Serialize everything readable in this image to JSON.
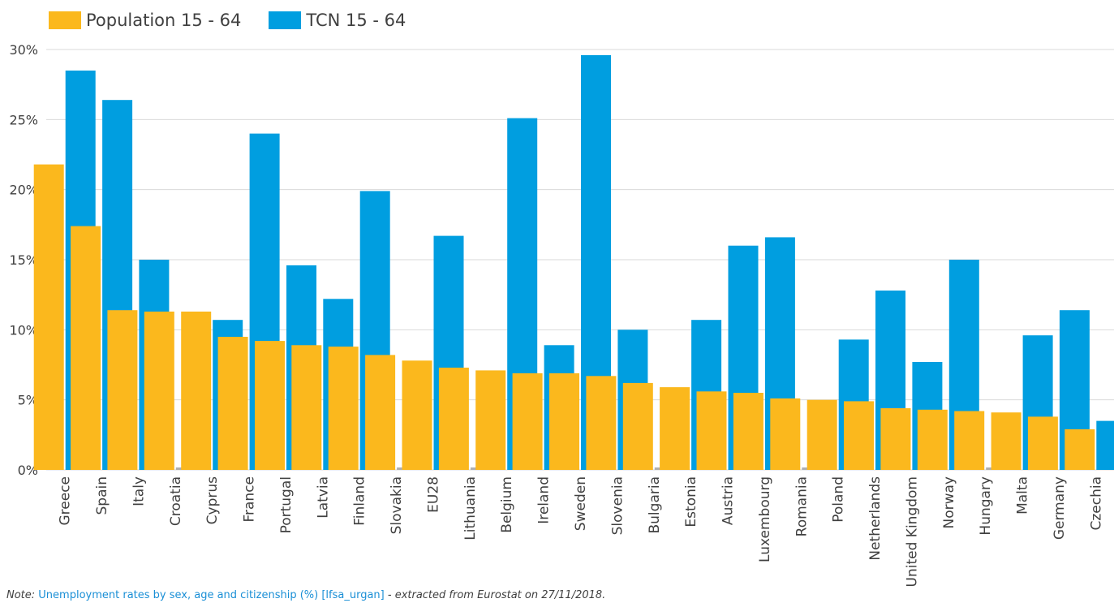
{
  "legend": {
    "series1": "Population 15 - 64",
    "series2": "TCN 15 - 64"
  },
  "note": {
    "prefix": "Note:",
    "link_text": "Unemployment rates by sex, age and citizenship (%) [lfsa_urgan]",
    "suffix": " - extracted from Eurostat on 27/11/2018."
  },
  "colors": {
    "series1": "#fbb81d",
    "series2": "#009ee0",
    "gridline": "#d9d9d9",
    "text": "#404040",
    "missing": "#b0b0b0"
  },
  "chart_data": {
    "type": "bar",
    "categories": [
      "Greece",
      "Spain",
      "Italy",
      "Croatia",
      "Cyprus",
      "France",
      "Portugal",
      "Latvia",
      "Finland",
      "Slovakia",
      "EU28",
      "Lithuania",
      "Belgium",
      "Ireland",
      "Sweden",
      "Slovenia",
      "Bulgaria",
      "Estonia",
      "Austria",
      "Luxembourg",
      "Romania",
      "Poland",
      "Netherlands",
      "United Kingdom",
      "Norway",
      "Hungary",
      "Malta",
      "Germany",
      "Czechia"
    ],
    "series": [
      {
        "name": "Population 15 - 64",
        "color": "#fbb81d",
        "values": [
          21.8,
          17.4,
          11.4,
          11.3,
          11.3,
          9.5,
          9.2,
          8.9,
          8.8,
          8.2,
          7.8,
          7.3,
          7.1,
          6.9,
          6.9,
          6.7,
          6.2,
          5.9,
          5.6,
          5.5,
          5.1,
          5.0,
          4.9,
          4.4,
          4.3,
          4.2,
          4.1,
          3.8,
          2.9
        ]
      },
      {
        "name": "TCN 15 - 64",
        "color": "#009ee0",
        "values": [
          28.5,
          26.4,
          15.0,
          null,
          10.7,
          24.0,
          14.6,
          12.2,
          19.9,
          null,
          16.7,
          null,
          25.1,
          8.9,
          29.6,
          10.0,
          null,
          10.7,
          16.0,
          16.6,
          null,
          9.3,
          12.8,
          7.7,
          15.0,
          null,
          9.6,
          11.4,
          3.5
        ]
      }
    ],
    "y_ticks": [
      "0%",
      "5%",
      "10%",
      "15%",
      "20%",
      "25%",
      "30%"
    ],
    "ylim": [
      0,
      30
    ],
    "grid": true,
    "legend_position": "top-left",
    "title": "",
    "xlabel": "",
    "ylabel": ""
  }
}
